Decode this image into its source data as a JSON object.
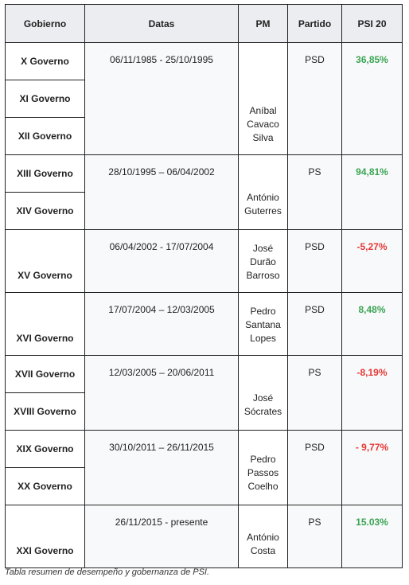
{
  "headers": {
    "gobierno": "Gobierno",
    "datas": "Datas",
    "pm": "PM",
    "partido": "Partido",
    "psi": "PSI 20"
  },
  "groups": [
    {
      "governos": [
        "X Governo",
        "XI Governo",
        "XII Governo"
      ],
      "datas": "06/11/1985 - 25/10/1995",
      "pm": [
        "Aníbal",
        "Cavaco",
        "Silva"
      ],
      "partido": "PSD",
      "psi": "36,85%",
      "psi_trend": "positive"
    },
    {
      "governos": [
        "XIII Governo",
        "XIV Governo"
      ],
      "datas": "28/10/1995 – 06/04/2002",
      "pm": [
        "António",
        "Guterres"
      ],
      "partido": "PS",
      "psi": "94,81%",
      "psi_trend": "positive"
    },
    {
      "governos": [
        "XV Governo"
      ],
      "datas": "06/04/2002 - 17/07/2004",
      "pm": [
        "José",
        "Durão",
        "Barroso"
      ],
      "partido": "PSD",
      "psi": "-5,27%",
      "psi_trend": "negative"
    },
    {
      "governos": [
        "XVI Governo"
      ],
      "datas": "17/07/2004 – 12/03/2005",
      "pm": [
        "Pedro",
        "Santana",
        "Lopes"
      ],
      "partido": "PSD",
      "psi": "8,48%",
      "psi_trend": "positive"
    },
    {
      "governos": [
        "XVII Governo",
        "XVIII Governo"
      ],
      "datas": "12/03/2005 – 20/06/2011",
      "pm": [
        "José",
        "Sócrates"
      ],
      "partido": "PS",
      "psi": "-8,19%",
      "psi_trend": "negative"
    },
    {
      "governos": [
        "XIX Governo",
        "XX Governo"
      ],
      "datas": "30/10/2011 – 26/11/2015",
      "pm": [
        "Pedro",
        "Passos",
        "Coelho"
      ],
      "partido": "PSD",
      "psi": "- 9,77%",
      "psi_trend": "negative"
    },
    {
      "governos": [
        "XXI Governo"
      ],
      "datas": "26/11/2015 - presente",
      "pm": [
        "António",
        "Costa"
      ],
      "partido": "PS",
      "psi": "15.03%",
      "psi_trend": "positive"
    }
  ],
  "caption": "Tabla resumen de desempeño y gobernanza de PSI.",
  "colors": {
    "header_bg": "#ebedf0",
    "cell_bg": "#f8f9fa",
    "positive": "#3aa453",
    "negative": "#e53935",
    "border": "#222222"
  }
}
